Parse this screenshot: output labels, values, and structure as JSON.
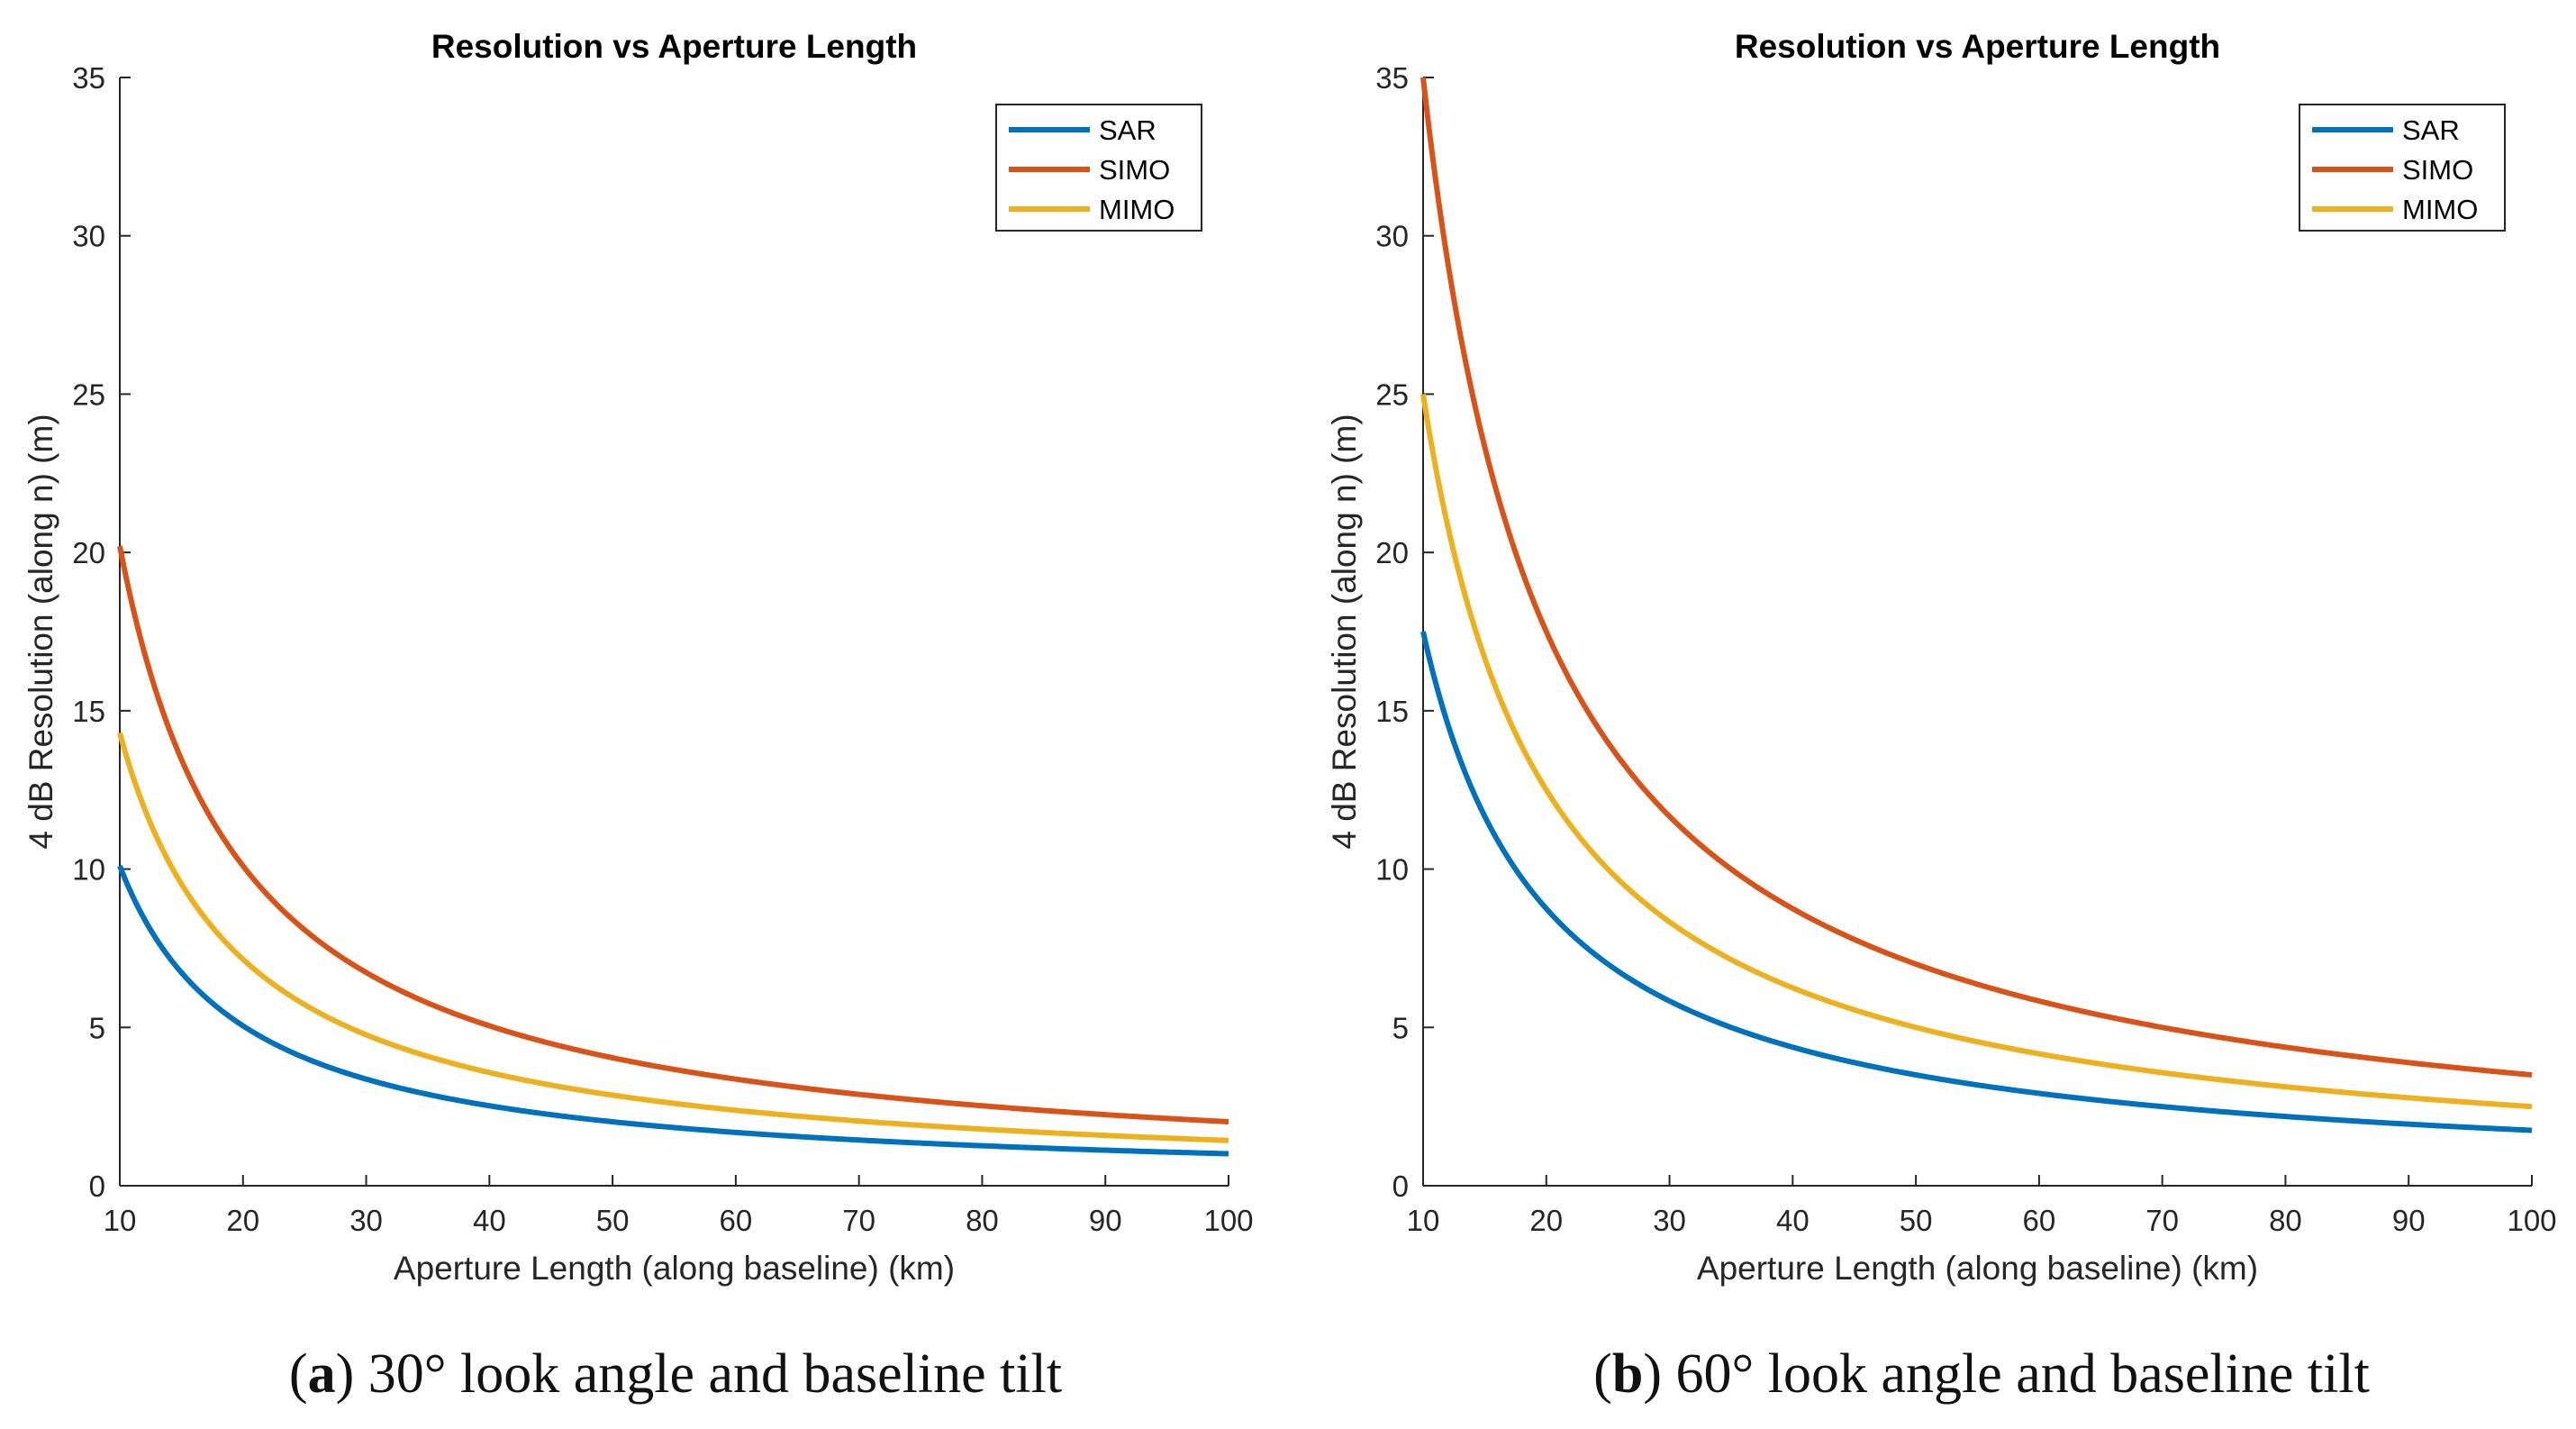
{
  "chart_data": [
    {
      "type": "line",
      "title": "Resolution vs Aperture Length",
      "xlabel": "Aperture Length (along baseline) (km)",
      "ylabel": "4 dB Resolution (along n) (m)",
      "xlim": [
        10,
        100
      ],
      "ylim": [
        0,
        35
      ],
      "xticks": [
        10,
        20,
        30,
        40,
        50,
        60,
        70,
        80,
        90,
        100
      ],
      "yticks": [
        0,
        5,
        10,
        15,
        20,
        25,
        30,
        35
      ],
      "grid": false,
      "legend_position": "top-right",
      "x": [
        10,
        12,
        15,
        20,
        25,
        30,
        40,
        50,
        60,
        70,
        80,
        90,
        100
      ],
      "series": [
        {
          "name": "SAR",
          "color": "#0072BD",
          "values": [
            10.1,
            8.42,
            6.73,
            5.05,
            4.04,
            3.37,
            2.53,
            2.02,
            1.68,
            1.44,
            1.26,
            1.12,
            1.01
          ]
        },
        {
          "name": "SIMO",
          "color": "#D95319",
          "values": [
            20.2,
            16.83,
            13.47,
            10.1,
            8.08,
            6.73,
            5.05,
            4.04,
            3.37,
            2.89,
            2.53,
            2.24,
            2.02
          ]
        },
        {
          "name": "MIMO",
          "color": "#EDB120",
          "values": [
            14.3,
            11.92,
            9.53,
            7.15,
            5.72,
            4.77,
            3.58,
            2.86,
            2.38,
            2.04,
            1.79,
            1.59,
            1.43
          ]
        }
      ]
    },
    {
      "type": "line",
      "title": "Resolution vs Aperture Length",
      "xlabel": "Aperture Length (along baseline) (km)",
      "ylabel": "4 dB Resolution (along n) (m)",
      "xlim": [
        10,
        100
      ],
      "ylim": [
        0,
        35
      ],
      "xticks": [
        10,
        20,
        30,
        40,
        50,
        60,
        70,
        80,
        90,
        100
      ],
      "yticks": [
        0,
        5,
        10,
        15,
        20,
        25,
        30,
        35
      ],
      "grid": false,
      "legend_position": "top-right",
      "x": [
        10,
        12,
        15,
        20,
        25,
        30,
        40,
        50,
        60,
        70,
        80,
        90,
        100
      ],
      "series": [
        {
          "name": "SAR",
          "color": "#0072BD",
          "values": [
            17.5,
            14.58,
            11.67,
            8.75,
            7.0,
            5.83,
            4.38,
            3.5,
            2.92,
            2.5,
            2.19,
            1.94,
            1.75
          ]
        },
        {
          "name": "SIMO",
          "color": "#D95319",
          "values": [
            35.0,
            29.17,
            23.33,
            17.5,
            14.0,
            11.67,
            8.75,
            7.0,
            5.83,
            5.0,
            4.38,
            3.89,
            3.5
          ]
        },
        {
          "name": "MIMO",
          "color": "#EDB120",
          "values": [
            25.0,
            20.83,
            16.67,
            12.5,
            10.0,
            8.33,
            6.25,
            5.0,
            4.17,
            3.57,
            3.13,
            2.78,
            2.5
          ]
        }
      ]
    }
  ],
  "captions": {
    "a": {
      "tag": "a",
      "text": " 30° look angle and baseline tilt"
    },
    "b": {
      "tag": "b",
      "text": " 60° look angle and baseline tilt"
    }
  }
}
